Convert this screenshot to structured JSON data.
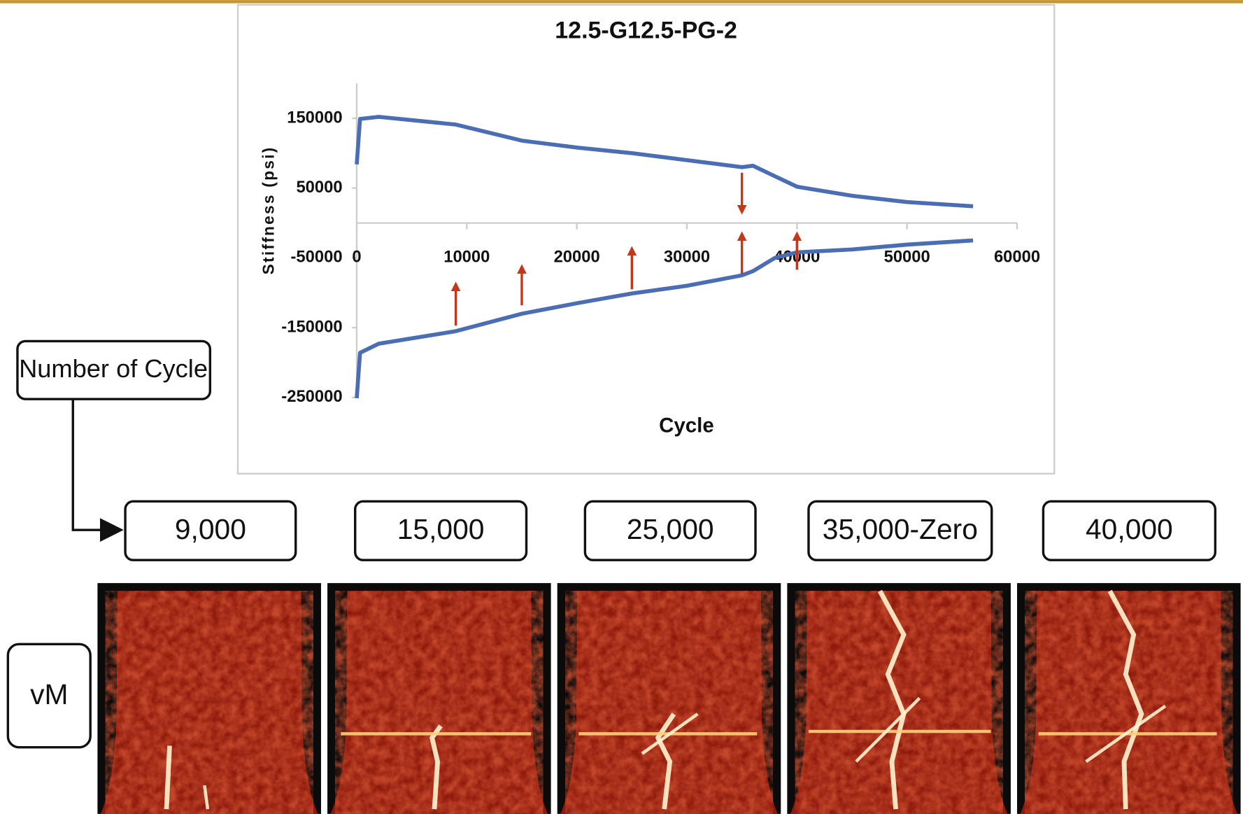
{
  "chart_data": {
    "type": "line",
    "title": "12.5-G12.5-PG-2",
    "x_label": "Cycle",
    "y_label": "Stiffness (psi)",
    "x": [
      0,
      300,
      2000,
      9000,
      15000,
      20000,
      25000,
      30000,
      35000,
      36000,
      38000,
      40000,
      45000,
      50000,
      56000
    ],
    "series": [
      {
        "color": "#4a6db3",
        "values": [
          84000,
          149000,
          152000,
          141000,
          118000,
          108000,
          100000,
          90000,
          80000,
          82000,
          67000,
          52000,
          39000,
          30000,
          24000
        ]
      },
      {
        "color": "#4a6db3",
        "values": [
          -251000,
          -186000,
          -173000,
          -155000,
          -130000,
          -115000,
          -101000,
          -90000,
          -75000,
          -69000,
          -50000,
          -42000,
          -38000,
          -31000,
          -25000
        ]
      }
    ],
    "xlim": [
      0,
      60000
    ],
    "ylim": [
      -250000,
      200000
    ],
    "xticks": [
      0,
      10000,
      20000,
      30000,
      40000,
      50000,
      60000
    ],
    "yticks": [
      -250000,
      -150000,
      -50000,
      50000,
      150000
    ],
    "arrow_color": "#c0391b",
    "arrows": [
      {
        "x": 9000,
        "from": -147000,
        "to": -84000
      },
      {
        "x": 15000,
        "from": -118000,
        "to": -59000
      },
      {
        "x": 25000,
        "from": -95000,
        "to": -33000
      },
      {
        "x": 35000,
        "from": -73000,
        "to": -12000
      },
      {
        "x": 35000,
        "from": 72000,
        "to": 12000
      },
      {
        "x": 40000,
        "from": -67000,
        "to": -12000
      }
    ]
  },
  "labels": {
    "cycle_label": "Number of Cycle",
    "cycles": [
      "9,000",
      "15,000",
      "25,000",
      "35,000-Zero",
      "40,000"
    ],
    "field": "vM"
  }
}
